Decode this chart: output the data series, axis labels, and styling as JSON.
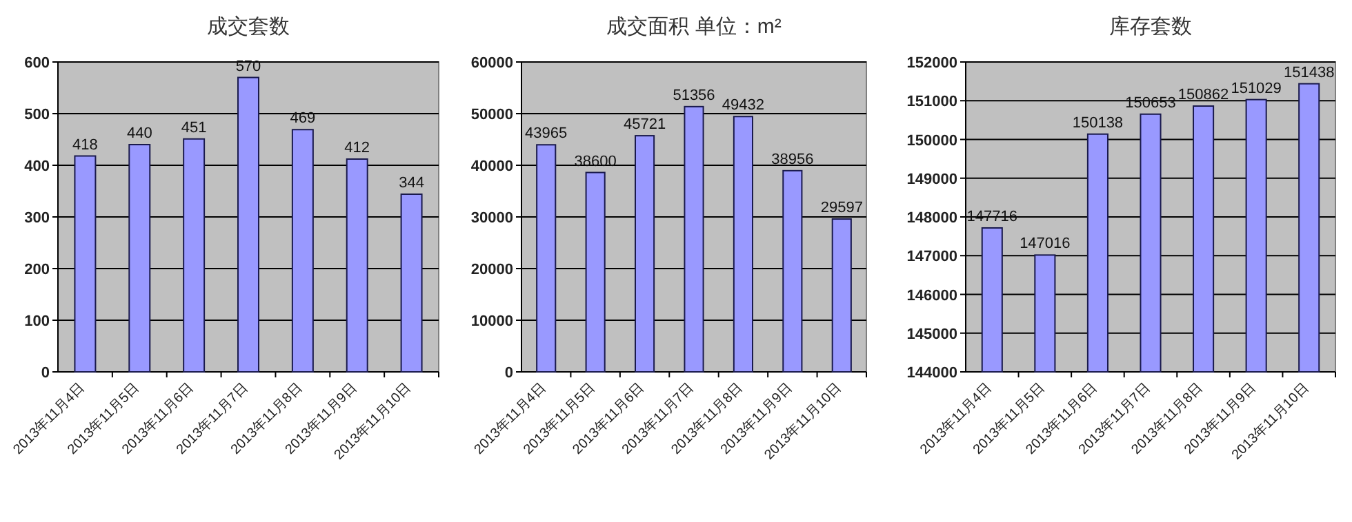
{
  "chart_data": [
    {
      "type": "bar",
      "title": "成交套数",
      "categories": [
        "2013年11月4日",
        "2013年11月5日",
        "2013年11月6日",
        "2013年11月7日",
        "2013年11月8日",
        "2013年11月9日",
        "2013年11月10日"
      ],
      "values": [
        418,
        440,
        451,
        570,
        469,
        412,
        344
      ],
      "color": "#9999ff",
      "ylim": [
        0,
        600
      ],
      "yticks": [
        0,
        100,
        200,
        300,
        400,
        500,
        600
      ],
      "grid": "y",
      "data_labels": true
    },
    {
      "type": "bar",
      "title": "成交面积 单位：m²",
      "categories": [
        "2013年11月4日",
        "2013年11月5日",
        "2013年11月6日",
        "2013年11月7日",
        "2013年11月8日",
        "2013年11月9日",
        "2013年11月10日"
      ],
      "values": [
        43965,
        38600,
        45721,
        51356,
        49432,
        38956,
        29597
      ],
      "color": "#9999ff",
      "ylim": [
        0,
        60000
      ],
      "yticks": [
        0,
        10000,
        20000,
        30000,
        40000,
        50000,
        60000
      ],
      "grid": "y",
      "data_labels": true
    },
    {
      "type": "bar",
      "title": "库存套数",
      "categories": [
        "2013年11月4日",
        "2013年11月5日",
        "2013年11月6日",
        "2013年11月7日",
        "2013年11月8日",
        "2013年11月9日",
        "2013年11月10日"
      ],
      "values": [
        147716,
        147016,
        150138,
        150653,
        150862,
        151029,
        151438
      ],
      "color": "#9999ff",
      "ylim": [
        144000,
        152000
      ],
      "yticks": [
        144000,
        145000,
        146000,
        147000,
        148000,
        149000,
        150000,
        151000,
        152000
      ],
      "grid": "y",
      "data_labels": true
    }
  ]
}
